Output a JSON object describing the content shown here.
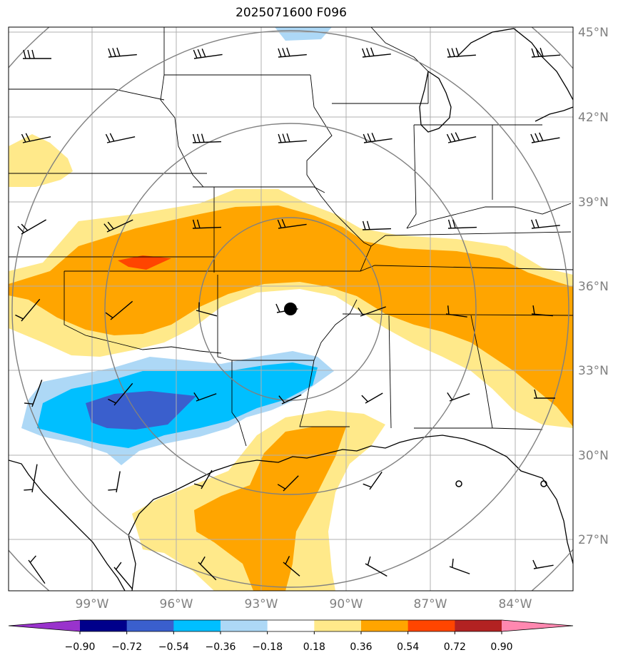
{
  "title": "2025071600 F096",
  "map": {
    "lat_labels": [
      "45°N",
      "42°N",
      "39°N",
      "36°N",
      "33°N",
      "30°N",
      "27°N"
    ],
    "lon_labels": [
      "99°W",
      "96°W",
      "93°W",
      "90°W",
      "87°W",
      "84°W"
    ],
    "label_color": "#808080",
    "center_marker": "station-dot"
  },
  "colorbar": {
    "ticks": [
      "−0.90",
      "−0.72",
      "−0.54",
      "−0.36",
      "−0.18",
      "0.18",
      "0.36",
      "0.54",
      "0.72",
      "0.90"
    ],
    "colors": [
      "#9933cc",
      "#00008b",
      "#3a5fcd",
      "#00bfff",
      "#add8f6",
      "#ffffff",
      "#ffe98a",
      "#ffa500",
      "#ff4500",
      "#b22222",
      "#ff88b0"
    ]
  },
  "field_colors": {
    "light_yellow": "#ffe98a",
    "orange": "#ffa500",
    "red_orange": "#ff4500",
    "light_blue": "#add8f6",
    "sky_blue": "#00bfff",
    "royal_blue": "#3a5fcd"
  }
}
